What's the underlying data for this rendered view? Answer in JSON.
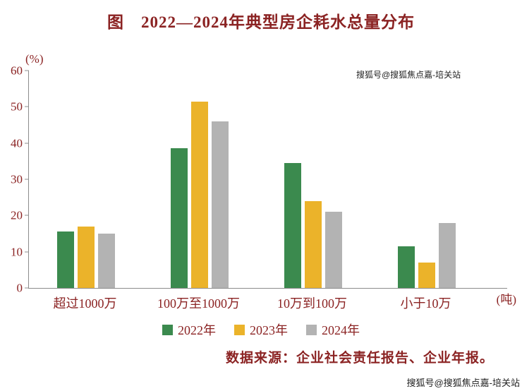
{
  "colors": {
    "text": "#8b2323",
    "axis": "#8c8c8c",
    "series_2022": "#3b8a4e",
    "series_2023": "#ebb32a",
    "series_2024": "#b3b3b3"
  },
  "chart_data": {
    "type": "bar",
    "title": "图　2022—2024年典型房企耗水总量分布",
    "categories": [
      "超过1000万",
      "100万至1000万",
      "10万到100万",
      "小于10万"
    ],
    "series": [
      {
        "name": "2022年",
        "color": "#3b8a4e",
        "values": [
          15.5,
          38.5,
          34.5,
          11.5
        ]
      },
      {
        "name": "2023年",
        "color": "#ebb32a",
        "values": [
          17,
          51.5,
          24,
          7
        ]
      },
      {
        "name": "2024年",
        "color": "#b3b3b3",
        "values": [
          15,
          46,
          21,
          18
        ]
      }
    ],
    "ylim": [
      0,
      60
    ],
    "yticks": [
      0,
      10,
      20,
      30,
      40,
      50,
      60
    ],
    "y_unit": "(%)",
    "x_unit": "(吨)",
    "grid": false,
    "legend_position": "bottom"
  },
  "source_note": "数据来源：企业社会责任报告、企业年报。",
  "watermarks": {
    "top": "搜狐号@搜狐焦点嘉-培关站",
    "bottom": "搜狐号@搜狐焦点嘉-培关站"
  }
}
